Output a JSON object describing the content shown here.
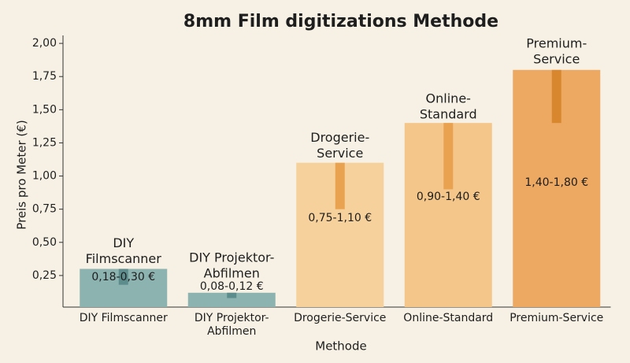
{
  "chart_data": {
    "type": "range_bar",
    "title": "8mm Film digitizations Methode",
    "x_label": "Methode",
    "y_label": "Preis pro Meter (€)",
    "categories": [
      [
        "DIY Filmscanner"
      ],
      [
        "DIY Projektor-",
        "Abfilmen"
      ],
      [
        "Drogerie-Service"
      ],
      [
        "Online-Standard"
      ],
      [
        "Premium-Service"
      ]
    ],
    "bar_labels": [
      [
        "DIY",
        "Filmscanner"
      ],
      [
        "DIY Projektor-",
        "Abfilmen"
      ],
      [
        "Drogerie-",
        "Service"
      ],
      [
        "Online-",
        "Standard"
      ],
      [
        "Premium-",
        "Service"
      ]
    ],
    "low": [
      0.18,
      0.08,
      0.75,
      0.9,
      1.4
    ],
    "values": [
      0.3,
      0.12,
      1.1,
      1.4,
      1.8
    ],
    "value_labels": [
      "0,18-0,30 €",
      "0,08-0,12 €",
      "0,75-1,10 €",
      "0,90-1,40 €",
      "1,40-1,80 €"
    ],
    "colors": [
      "#8db3b1",
      "#8db3b1",
      "#f6d19c",
      "#f5c68a",
      "#eda862"
    ],
    "range_colors": [
      "#5c8c8b",
      "#5c8c8b",
      "#e9a24f",
      "#e9a24f",
      "#d9872f"
    ],
    "ylim": [
      0,
      2.06
    ],
    "yticks": [
      {
        "value": 0.25,
        "label": "0,25"
      },
      {
        "value": 0.5,
        "label": "0,50"
      },
      {
        "value": 0.75,
        "label": "0,75"
      },
      {
        "value": 1,
        "label": "1,00"
      },
      {
        "value": 1.25,
        "label": "1,25"
      },
      {
        "value": 1.5,
        "label": "1,50"
      },
      {
        "value": 1.75,
        "label": "1,75"
      },
      {
        "value": 2,
        "label": "2,00"
      }
    ]
  }
}
